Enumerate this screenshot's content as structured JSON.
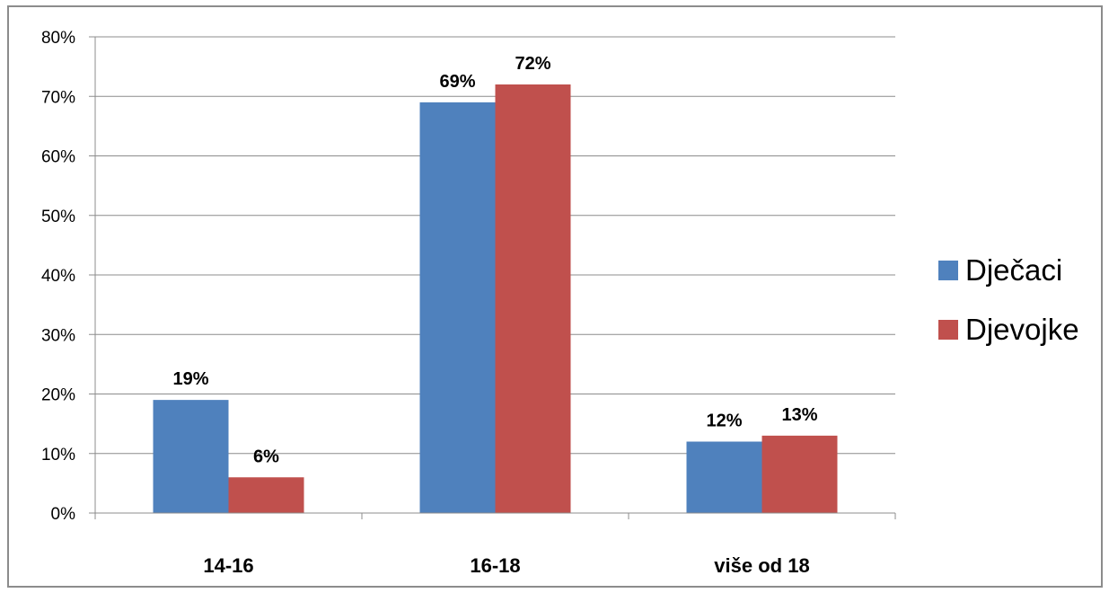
{
  "chart_data": {
    "type": "bar",
    "categories": [
      "14-16",
      "16-18",
      "više od 18"
    ],
    "series": [
      {
        "name": "Dječaci",
        "values": [
          19,
          69,
          12
        ],
        "color": "#4F81BD"
      },
      {
        "name": "Djevojke",
        "values": [
          6,
          72,
          13
        ],
        "color": "#C0504D"
      }
    ],
    "ylim": [
      0,
      80
    ],
    "yticks": [
      0,
      10,
      20,
      30,
      40,
      50,
      60,
      70,
      80
    ],
    "value_suffix": "%",
    "grid": true,
    "legend_position": "right",
    "title": "",
    "xlabel": "",
    "ylabel": ""
  }
}
